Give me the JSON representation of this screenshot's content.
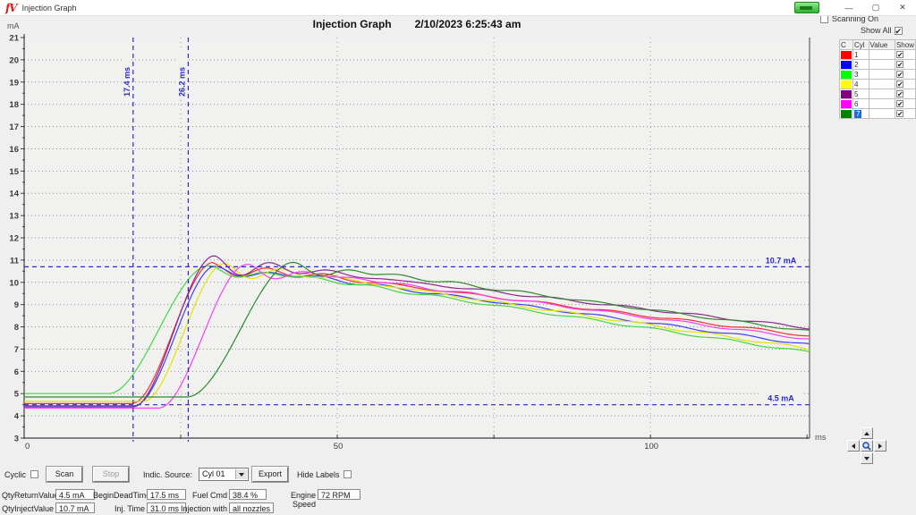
{
  "window": {
    "logo": "fV",
    "title": "Injection Graph",
    "minimize": "—",
    "maximize": "▢",
    "close": "✕"
  },
  "header": {
    "title": "Injection Graph",
    "timestamp": "2/10/2023 6:25:43 am",
    "y_unit": "mA",
    "x_unit": "ms"
  },
  "scanning": {
    "label": "Scanning On",
    "checked": false
  },
  "show_all": {
    "label": "Show All",
    "checked": true
  },
  "legend": {
    "columns": [
      "C",
      "Cyl",
      "Value",
      "Show"
    ],
    "rows": [
      {
        "cyl": "1",
        "color": "#ff0000",
        "value": "",
        "show": true,
        "selected": false
      },
      {
        "cyl": "2",
        "color": "#0000ff",
        "value": "",
        "show": true,
        "selected": false
      },
      {
        "cyl": "3",
        "color": "#00ff00",
        "value": "",
        "show": true,
        "selected": false
      },
      {
        "cyl": "4",
        "color": "#ffff00",
        "value": "",
        "show": true,
        "selected": false
      },
      {
        "cyl": "5",
        "color": "#800080",
        "value": "",
        "show": true,
        "selected": false
      },
      {
        "cyl": "6",
        "color": "#ff00ff",
        "value": "",
        "show": true,
        "selected": false
      },
      {
        "cyl": "7",
        "color": "#008000",
        "value": "",
        "show": true,
        "selected": true
      }
    ]
  },
  "chart_data": {
    "type": "line",
    "title": "Injection Graph",
    "xlabel": "ms",
    "ylabel": "mA",
    "xlim": [
      0,
      125.4
    ],
    "ylim": [
      3,
      21
    ],
    "x_major_ticks": [
      0,
      25,
      50,
      75,
      100,
      125
    ],
    "x_labeled_ticks": [
      [
        0,
        "0"
      ],
      [
        50,
        "50"
      ],
      [
        100,
        "100"
      ]
    ],
    "y_tick_step": 1,
    "grid": "dotted",
    "annotation_color": "#2a2ac8",
    "annotations": {
      "vlines": [
        {
          "x": 17.4,
          "label": "17.4 ms"
        },
        {
          "x": 26.2,
          "label": "26.2 ms"
        }
      ],
      "hlines": [
        {
          "y": 10.7,
          "label": "10.7 mA"
        },
        {
          "y": 4.5,
          "label": "4.5 mA"
        }
      ]
    },
    "series": [
      {
        "name": "Cyl 1",
        "color": "#f03030",
        "base": 4.55,
        "rise_start": 17.2,
        "rise_dur": 13,
        "peak": 10.9,
        "plateau": 10.55,
        "ripple": 0.35,
        "end": 7.6
      },
      {
        "name": "Cyl 2",
        "color": "#4040f0",
        "base": 4.45,
        "rise_start": 17.6,
        "rise_dur": 13,
        "peak": 10.75,
        "plateau": 10.45,
        "ripple": 0.3,
        "end": 7.2
      },
      {
        "name": "Cyl 3",
        "color": "#45d845",
        "base": 5.0,
        "rise_start": 13.5,
        "rise_dur": 16,
        "peak": 10.75,
        "plateau": 10.45,
        "ripple": 0.3,
        "end": 6.85
      },
      {
        "name": "Cyl 4",
        "color": "#e3e300",
        "base": 4.65,
        "rise_start": 19.0,
        "rise_dur": 13,
        "peak": 10.85,
        "plateau": 10.5,
        "ripple": 0.35,
        "end": 7.0
      },
      {
        "name": "Cyl 5",
        "color": "#8b2b8b",
        "base": 4.4,
        "rise_start": 17.4,
        "rise_dur": 13,
        "peak": 11.2,
        "plateau": 10.72,
        "ripple": 0.48,
        "end": 7.95
      },
      {
        "name": "Cyl 6",
        "color": "#f540f5",
        "base": 4.35,
        "rise_start": 21.5,
        "rise_dur": 14,
        "peak": 10.8,
        "plateau": 10.45,
        "ripple": 0.35,
        "end": 7.45
      },
      {
        "name": "Cyl 7",
        "color": "#2d8b2d",
        "base": 4.85,
        "rise_start": 26.0,
        "rise_dur": 17,
        "peak": 10.9,
        "plateau": 10.55,
        "ripple": 0.35,
        "end": 7.8
      }
    ]
  },
  "controls": {
    "cyclic_label": "Cyclic",
    "scan_label": "Scan",
    "stop_label": "Stop",
    "indic_source_label": "Indic. Source:",
    "indic_source_value": "Cyl 01",
    "export_label": "Export",
    "hide_labels_label": "Hide Labels"
  },
  "fields": {
    "row1": [
      {
        "label": "QtyReturnValue",
        "value": "4.5 mA"
      },
      {
        "label": "BeginDeadTime",
        "value": "17.5 ms"
      },
      {
        "label": "Fuel Cmd",
        "value": "38.4 %"
      },
      {
        "label": "Engine Speed",
        "value": "72 RPM"
      }
    ],
    "row2": [
      {
        "label": "QtyInjectValue",
        "value": "10.7 mA"
      },
      {
        "label": "Inj. Time",
        "value": "31.0 ms"
      },
      {
        "label": "Injection with",
        "value": "all nozzles"
      }
    ]
  }
}
